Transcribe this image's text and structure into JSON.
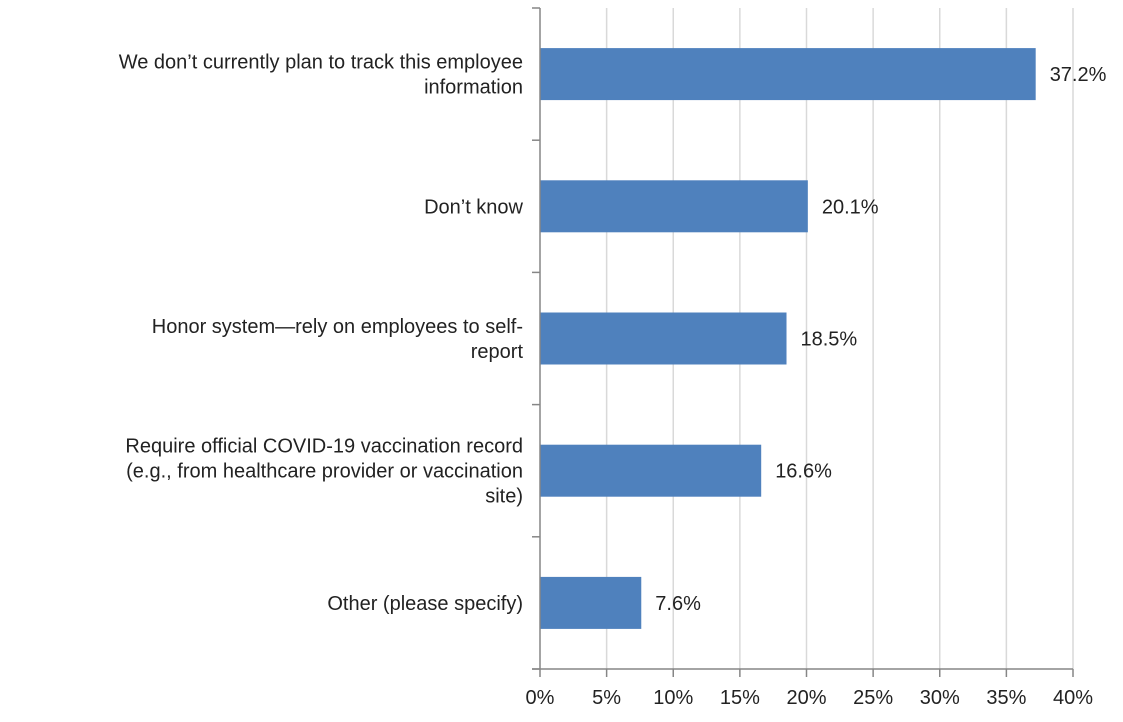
{
  "chart_data": {
    "type": "bar",
    "orientation": "horizontal",
    "categories": [
      [
        "We don’t currently plan to track this employee",
        "information"
      ],
      [
        "Don’t know"
      ],
      [
        "Honor system—rely on employees to self-",
        "report"
      ],
      [
        "Require official COVID-19 vaccination record",
        "(e.g., from healthcare provider or vaccination",
        "site)"
      ],
      [
        "Other (please specify)"
      ]
    ],
    "values": [
      37.2,
      20.1,
      18.5,
      16.6,
      7.6
    ],
    "value_labels": [
      "37.2%",
      "20.1%",
      "18.5%",
      "16.6%",
      "7.6%"
    ],
    "xlim": [
      0,
      40
    ],
    "x_ticks": [
      0,
      5,
      10,
      15,
      20,
      25,
      30,
      35,
      40
    ],
    "x_tick_labels": [
      "0%",
      "5%",
      "10%",
      "15%",
      "20%",
      "25%",
      "30%",
      "35%",
      "40%"
    ],
    "grid": "vertical",
    "legend": "none",
    "bar_color": "#4F81BD",
    "grid_color": "#D9D9D9",
    "axis_color": "#868686"
  }
}
